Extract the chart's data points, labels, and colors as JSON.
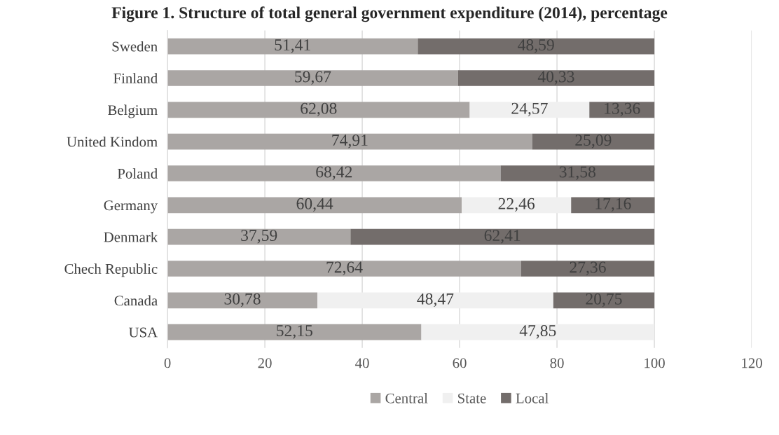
{
  "chart_data": {
    "type": "bar",
    "orientation": "horizontal",
    "stacked": true,
    "title": "Figure 1. Structure of total general government expenditure (2014), percentage",
    "categories": [
      "Sweden",
      "Finland",
      "Belgium",
      "United Kindom",
      "Poland",
      "Germany",
      "Denmark",
      "Chech Republic",
      "Canada",
      "USA"
    ],
    "series": [
      {
        "name": "Central",
        "color": "#aaa6a4",
        "values": [
          51.41,
          59.67,
          62.08,
          74.91,
          68.42,
          60.44,
          37.59,
          72.64,
          30.78,
          52.15
        ],
        "value_labels": [
          "51,41",
          "59,67",
          "62,08",
          "74,91",
          "68,42",
          "60,44",
          "37,59",
          "72,64",
          "30,78",
          "52,15"
        ]
      },
      {
        "name": "State",
        "color": "#f0f0f0",
        "values": [
          null,
          null,
          24.57,
          null,
          null,
          22.46,
          null,
          null,
          48.47,
          47.85
        ],
        "value_labels": [
          null,
          null,
          "24,57",
          null,
          null,
          "22,46",
          null,
          null,
          "48,47",
          "47,85"
        ]
      },
      {
        "name": "Local",
        "color": "#736d6b",
        "values": [
          48.59,
          40.33,
          13.36,
          25.09,
          31.58,
          17.16,
          62.41,
          27.36,
          20.75,
          null
        ],
        "value_labels": [
          "48,59",
          "40,33",
          "13,36",
          "25,09",
          "31,58",
          "17,16",
          "62,41",
          "27,36",
          "20,75",
          null
        ]
      }
    ],
    "xlim": [
      0,
      120
    ],
    "xticks": [
      0,
      20,
      40,
      60,
      80,
      100,
      120
    ],
    "grid": "x",
    "legend": "bottom"
  }
}
